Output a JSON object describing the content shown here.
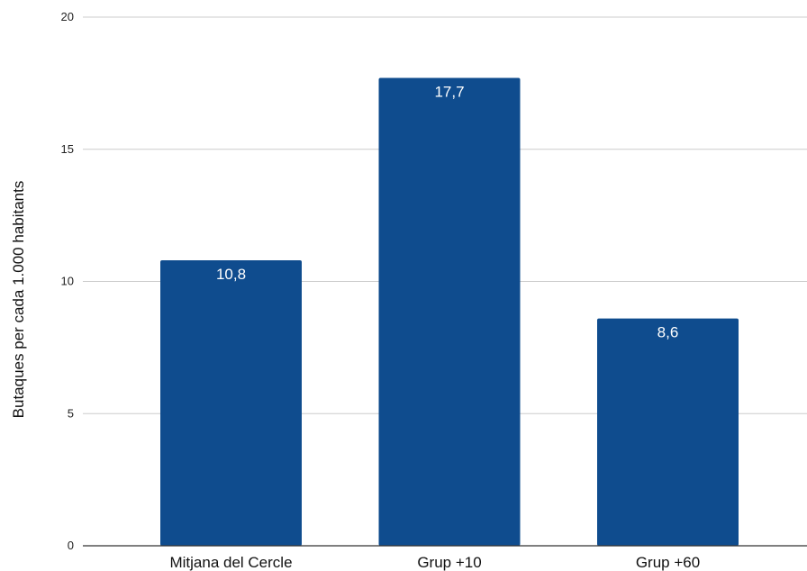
{
  "chart_data": {
    "type": "bar",
    "categories": [
      "Mitjana del Cercle",
      "Grup +10",
      "Grup +60"
    ],
    "values": [
      10.8,
      17.7,
      8.6
    ],
    "data_labels": [
      "10,8",
      "17,7",
      "8,6"
    ],
    "ylabel": "Butaques  per cada 1.000 habitants",
    "ylim": [
      0,
      20
    ],
    "yticks": [
      0,
      5,
      10,
      15,
      20
    ],
    "ytick_labels": [
      "0",
      "5",
      "10",
      "15",
      "20"
    ],
    "grid": true,
    "legend": "none",
    "colors": {
      "bar": "#0f4c8e",
      "grid": "#cccccc",
      "axis": "#333333"
    }
  }
}
